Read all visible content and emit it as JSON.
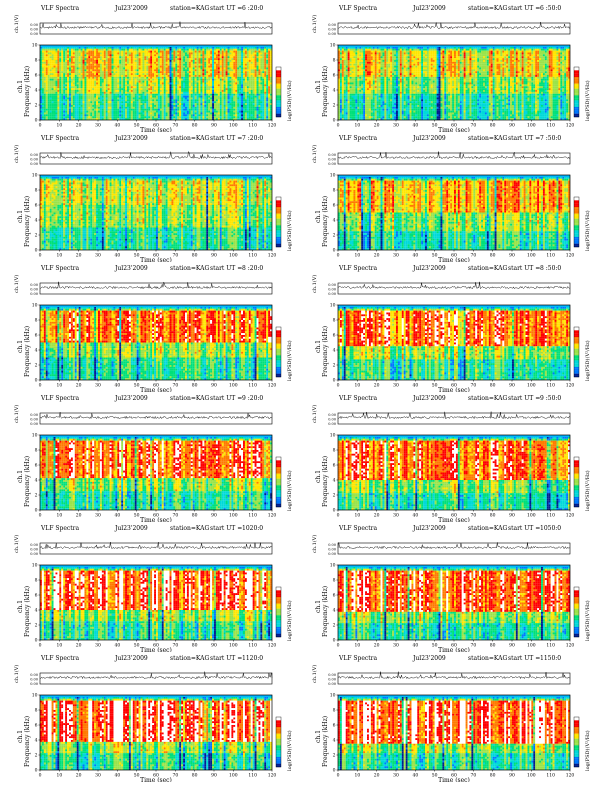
{
  "colors": {
    "waveform": "#111111",
    "axis": "#000000",
    "colormap_order": "high-to-low",
    "colormap": [
      "#ffffff",
      "#ff0000",
      "#ff7a00",
      "#ffe600",
      "#9be34a",
      "#00e07a",
      "#00d9d9",
      "#0077ff",
      "#001d8f"
    ],
    "band_top": "#00b7ff"
  },
  "common": {
    "header_label": "VLF Spectra",
    "date": "Jul23'2009",
    "station": "station=KAG",
    "start_prefix": "start UT =",
    "waveform_ylabel": "ch.1(V)",
    "waveform_ticks": [
      "0.00",
      "0.00",
      "0.00"
    ],
    "spec_ylabel_top": "ch.1",
    "spec_ylabel": "Frequency (kHz)",
    "y_ticks": [
      "0",
      "2",
      "4",
      "6",
      "8",
      "10"
    ],
    "x_ticks": [
      "0",
      "10",
      "20",
      "30",
      "40",
      "50",
      "60",
      "70",
      "80",
      "90",
      "100",
      "110",
      "120"
    ],
    "xlabel": "Time (sec)",
    "colorbar_label": "log(PSD)(V²/Hz)"
  },
  "chart_data": [
    {
      "type": "heatmap",
      "panel": "left-1",
      "start_ut": "6 :20:0",
      "x_range": [
        0,
        120
      ],
      "y_range": [
        0,
        10
      ],
      "x_unit": "sec",
      "y_unit": "kHz",
      "red_band_khz": [
        5.8,
        9.2
      ],
      "yellow_band_khz": [
        3.5,
        5.8
      ],
      "green_band_khz": [
        0,
        3.5
      ],
      "max_intensity": 0.6
    },
    {
      "type": "heatmap",
      "panel": "right-1",
      "start_ut": "6 :50:0",
      "x_range": [
        0,
        120
      ],
      "y_range": [
        0,
        10
      ],
      "x_unit": "sec",
      "y_unit": "kHz",
      "red_band_khz": [
        5.8,
        9.2
      ],
      "yellow_band_khz": [
        3.5,
        5.8
      ],
      "green_band_khz": [
        0,
        3.5
      ],
      "max_intensity": 0.62
    },
    {
      "type": "heatmap",
      "panel": "left-2",
      "start_ut": "7 :20:0",
      "x_range": [
        0,
        120
      ],
      "y_range": [
        0,
        10
      ],
      "x_unit": "sec",
      "y_unit": "kHz",
      "red_band_khz": [
        6.0,
        9.2
      ],
      "yellow_band_khz": [
        3.0,
        6.0
      ],
      "green_band_khz": [
        0,
        3.0
      ],
      "max_intensity": 0.58
    },
    {
      "type": "heatmap",
      "panel": "right-2",
      "start_ut": "7 :50:0",
      "x_range": [
        0,
        120
      ],
      "y_range": [
        0,
        10
      ],
      "x_unit": "sec",
      "y_unit": "kHz",
      "red_band_khz": [
        5.0,
        9.2
      ],
      "yellow_band_khz": [
        2.5,
        5.0
      ],
      "green_band_khz": [
        0,
        2.5
      ],
      "max_intensity": 0.7
    },
    {
      "type": "heatmap",
      "panel": "left-3",
      "start_ut": "8 :20:0",
      "x_range": [
        0,
        120
      ],
      "y_range": [
        0,
        10
      ],
      "x_unit": "sec",
      "y_unit": "kHz",
      "red_band_khz": [
        5.0,
        9.2
      ],
      "yellow_band_khz": [
        3.0,
        5.0
      ],
      "green_band_khz": [
        0,
        3.0
      ],
      "max_intensity": 0.78
    },
    {
      "type": "heatmap",
      "panel": "right-3",
      "start_ut": "8 :50:0",
      "x_range": [
        0,
        120
      ],
      "y_range": [
        0,
        10
      ],
      "x_unit": "sec",
      "y_unit": "kHz",
      "red_band_khz": [
        4.5,
        9.2
      ],
      "yellow_band_khz": [
        2.8,
        4.5
      ],
      "green_band_khz": [
        0,
        2.8
      ],
      "max_intensity": 0.8
    },
    {
      "type": "heatmap",
      "panel": "left-4",
      "start_ut": "9 :20:0",
      "x_range": [
        0,
        120
      ],
      "y_range": [
        0,
        10
      ],
      "x_unit": "sec",
      "y_unit": "kHz",
      "red_band_khz": [
        4.2,
        9.2
      ],
      "yellow_band_khz": [
        2.5,
        4.2
      ],
      "green_band_khz": [
        0,
        2.5
      ],
      "max_intensity": 0.82
    },
    {
      "type": "heatmap",
      "panel": "right-4",
      "start_ut": "9 :50:0",
      "x_range": [
        0,
        120
      ],
      "y_range": [
        0,
        10
      ],
      "x_unit": "sec",
      "y_unit": "kHz",
      "red_band_khz": [
        4.0,
        9.2
      ],
      "yellow_band_khz": [
        2.2,
        4.0
      ],
      "green_band_khz": [
        0,
        2.2
      ],
      "max_intensity": 0.82
    },
    {
      "type": "heatmap",
      "panel": "left-5",
      "start_ut": "1020:0",
      "x_range": [
        0,
        120
      ],
      "y_range": [
        0,
        10
      ],
      "x_unit": "sec",
      "y_unit": "kHz",
      "red_band_khz": [
        4.0,
        9.2
      ],
      "yellow_band_khz": [
        2.5,
        4.0
      ],
      "green_band_khz": [
        0,
        2.5
      ],
      "max_intensity": 0.85
    },
    {
      "type": "heatmap",
      "panel": "right-5",
      "start_ut": "1050:0",
      "x_range": [
        0,
        120
      ],
      "y_range": [
        0,
        10
      ],
      "x_unit": "sec",
      "y_unit": "kHz",
      "red_band_khz": [
        3.8,
        9.2
      ],
      "yellow_band_khz": [
        2.3,
        3.8
      ],
      "green_band_khz": [
        0,
        2.3
      ],
      "max_intensity": 0.85
    },
    {
      "type": "heatmap",
      "panel": "left-6",
      "start_ut": "1120:0",
      "x_range": [
        0,
        120
      ],
      "y_range": [
        0,
        10
      ],
      "x_unit": "sec",
      "y_unit": "kHz",
      "red_band_khz": [
        3.8,
        9.2
      ],
      "yellow_band_khz": [
        2.3,
        3.8
      ],
      "green_band_khz": [
        0,
        2.3
      ],
      "max_intensity": 0.88
    },
    {
      "type": "heatmap",
      "panel": "right-6",
      "start_ut": "1150:0",
      "x_range": [
        0,
        120
      ],
      "y_range": [
        0,
        10
      ],
      "x_unit": "sec",
      "y_unit": "kHz",
      "red_band_khz": [
        3.6,
        9.2
      ],
      "yellow_band_khz": [
        2.2,
        3.6
      ],
      "green_band_khz": [
        0,
        2.2
      ],
      "max_intensity": 0.88
    }
  ]
}
